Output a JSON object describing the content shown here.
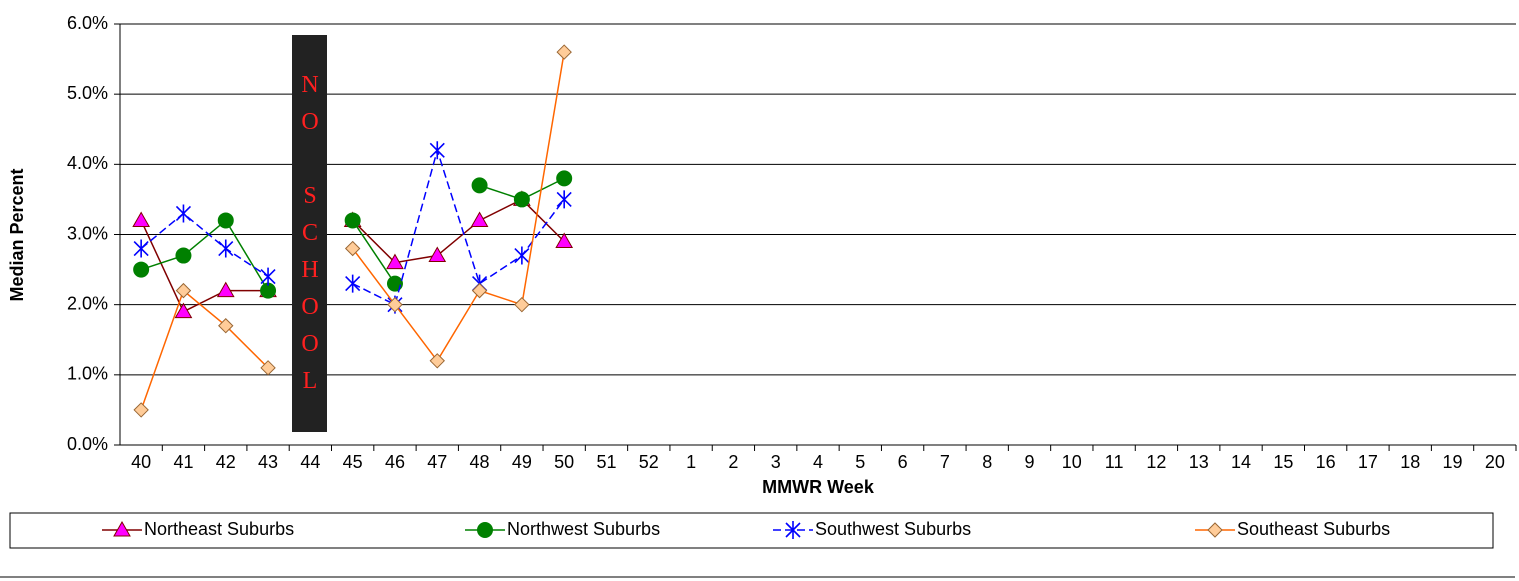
{
  "chart_data": {
    "type": "line",
    "x_label": "MMWR Week",
    "y_label": "Median Percent",
    "annotation": "NO SCHOOL",
    "categories": [
      "40",
      "41",
      "42",
      "43",
      "44",
      "45",
      "46",
      "47",
      "48",
      "49",
      "50",
      "51",
      "52",
      "1",
      "2",
      "3",
      "4",
      "5",
      "6",
      "7",
      "8",
      "9",
      "10",
      "11",
      "12",
      "13",
      "14",
      "15",
      "16",
      "17",
      "18",
      "19",
      "20"
    ],
    "series": [
      {
        "name": "Northeast Suburbs",
        "color": "#800000",
        "marker": "triangle",
        "marker_color": "#ff00ff",
        "values": [
          3.2,
          1.9,
          2.2,
          2.2,
          null,
          3.2,
          2.6,
          2.7,
          3.2,
          3.5,
          2.9,
          null,
          null,
          null,
          null,
          null,
          null,
          null,
          null,
          null,
          null,
          null,
          null,
          null,
          null,
          null,
          null,
          null,
          null,
          null,
          null,
          null,
          null
        ]
      },
      {
        "name": "Northwest Suburbs",
        "color": "#008000",
        "marker": "circle",
        "marker_color": "#008000",
        "values": [
          2.5,
          2.7,
          3.2,
          2.2,
          null,
          3.2,
          2.3,
          null,
          3.7,
          3.5,
          3.8,
          null,
          null,
          null,
          null,
          null,
          null,
          null,
          null,
          null,
          null,
          null,
          null,
          null,
          null,
          null,
          null,
          null,
          null,
          null,
          null,
          null,
          null
        ]
      },
      {
        "name": "Southwest Suburbs",
        "color": "#0000ff",
        "marker": "asterisk",
        "marker_color": "#0000ff",
        "dashed": true,
        "values": [
          2.8,
          3.3,
          2.8,
          2.4,
          null,
          2.3,
          2.0,
          4.2,
          2.3,
          2.7,
          3.5,
          null,
          null,
          null,
          null,
          null,
          null,
          null,
          null,
          null,
          null,
          null,
          null,
          null,
          null,
          null,
          null,
          null,
          null,
          null,
          null,
          null,
          null
        ]
      },
      {
        "name": "Southeast Suburbs",
        "color": "#ff6600",
        "marker": "diamond",
        "marker_color": "#ffcc99",
        "values": [
          0.5,
          2.2,
          1.7,
          1.1,
          null,
          2.8,
          2.0,
          1.2,
          2.2,
          2.0,
          5.6,
          null,
          null,
          null,
          null,
          null,
          null,
          null,
          null,
          null,
          null,
          null,
          null,
          null,
          null,
          null,
          null,
          null,
          null,
          null,
          null,
          null,
          null
        ]
      }
    ],
    "ylim": [
      0,
      6
    ],
    "yticks": [
      {
        "value": 0,
        "label": "0.0%"
      },
      {
        "value": 1,
        "label": "1.0%"
      },
      {
        "value": 2,
        "label": "2.0%"
      },
      {
        "value": 3,
        "label": "3.0%"
      },
      {
        "value": 4,
        "label": "4.0%"
      },
      {
        "value": 5,
        "label": "5.0%"
      },
      {
        "value": 6,
        "label": "6.0%"
      }
    ],
    "grid": true,
    "legend": "bottom"
  }
}
